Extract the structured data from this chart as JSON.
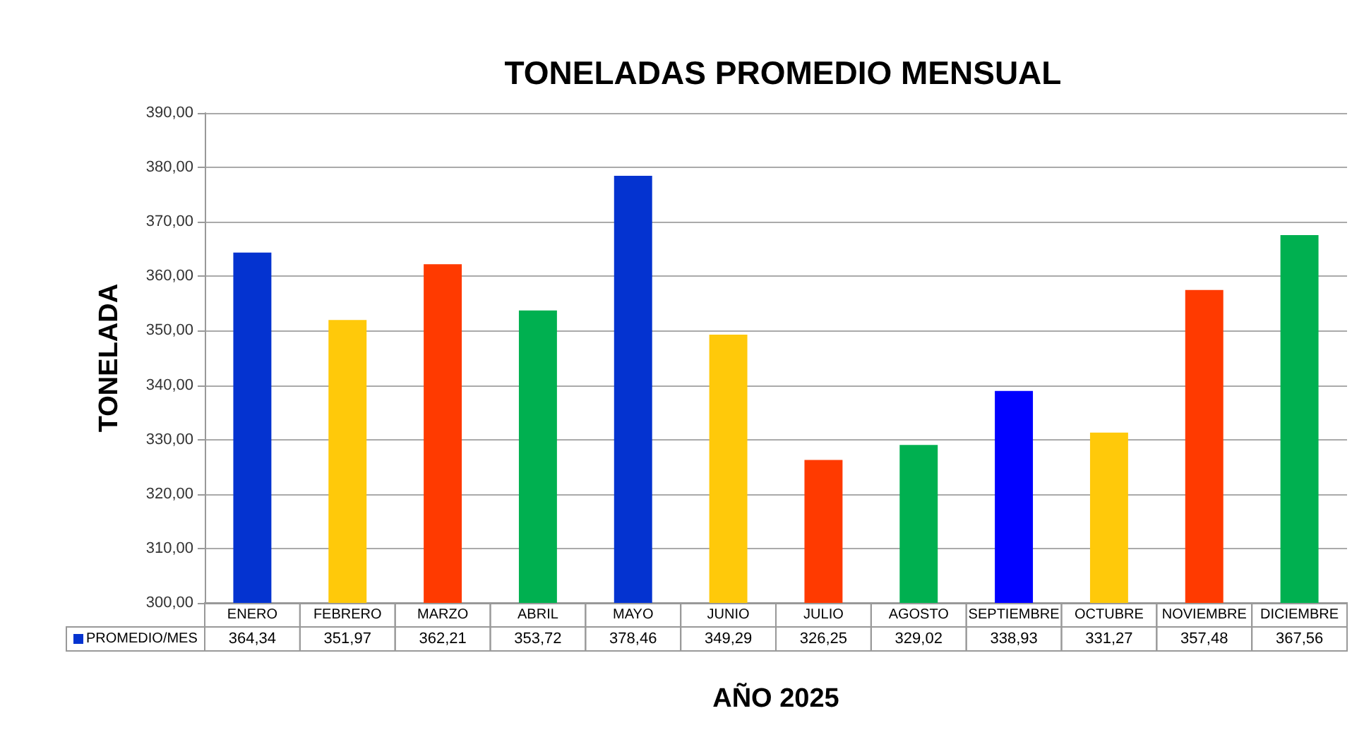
{
  "chart_data": {
    "type": "bar",
    "title": "TONELADAS PROMEDIO MENSUAL",
    "xlabel": "AÑO 2025",
    "ylabel": "TONELADA",
    "categories": [
      "ENERO",
      "FEBRERO",
      "MARZO",
      "ABRIL",
      "MAYO",
      "JUNIO",
      "JULIO",
      "AGOSTO",
      "SEPTIEMBRE",
      "OCTUBRE",
      "NOVIEMBRE",
      "DICIEMBRE"
    ],
    "series": [
      {
        "name": "PROMEDIO/MES",
        "values": [
          364.34,
          351.97,
          362.21,
          353.72,
          378.46,
          349.29,
          326.25,
          329.02,
          338.93,
          331.27,
          357.48,
          367.56
        ],
        "colors": [
          "#0433d0",
          "#ffc90a",
          "#ff3a00",
          "#00b050",
          "#0433d0",
          "#ffc90a",
          "#ff3a00",
          "#00b050",
          "#0000ff",
          "#ffc90a",
          "#ff3a00",
          "#00b050"
        ],
        "value_labels": [
          "364,34",
          "351,97",
          "362,21",
          "353,72",
          "378,46",
          "349,29",
          "326,25",
          "329,02",
          "338,93",
          "331,27",
          "357,48",
          "367,56"
        ]
      }
    ],
    "ylim": [
      300,
      390
    ],
    "yticks": [
      {
        "value": 300,
        "label": "300,00"
      },
      {
        "value": 310,
        "label": "310,00"
      },
      {
        "value": 320,
        "label": "320,00"
      },
      {
        "value": 330,
        "label": "330,00"
      },
      {
        "value": 340,
        "label": "340,00"
      },
      {
        "value": 350,
        "label": "350,00"
      },
      {
        "value": 360,
        "label": "360,00"
      },
      {
        "value": 370,
        "label": "370,00"
      },
      {
        "value": 380,
        "label": "380,00"
      },
      {
        "value": 390,
        "label": "390,00"
      }
    ],
    "grid": true,
    "legend": "bottom left"
  }
}
